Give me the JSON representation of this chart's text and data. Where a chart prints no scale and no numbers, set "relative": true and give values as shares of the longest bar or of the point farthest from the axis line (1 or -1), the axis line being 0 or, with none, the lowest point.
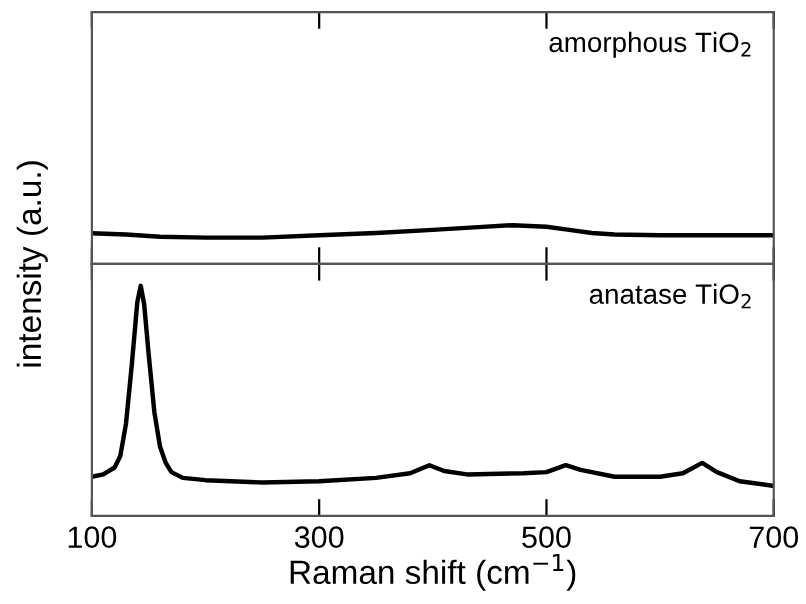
{
  "chart_data": [
    {
      "type": "line",
      "relative": true,
      "ylabel": "intensity (a.u.)",
      "annotations": [
        "amorphous TiO$_{2}$"
      ],
      "xlim": [
        100,
        700
      ],
      "xticks": [
        100,
        300,
        500,
        700
      ],
      "tick_labels": false,
      "grid": false,
      "marker": "none",
      "line_style": "solid",
      "series": [
        {
          "color": "#000000",
          "x": [
            100,
            130,
            160,
            200,
            250,
            300,
            350,
            400,
            440,
            470,
            500,
            520,
            540,
            560,
            600,
            650,
            700
          ],
          "values": [
            0.79,
            0.76,
            0.7,
            0.68,
            0.68,
            0.74,
            0.8,
            0.88,
            0.95,
            1.0,
            0.96,
            0.88,
            0.8,
            0.76,
            0.74,
            0.74,
            0.74
          ]
        }
      ]
    },
    {
      "type": "line",
      "relative": true,
      "xlabel": "Raman shift (cm$^{−1}$)",
      "annotations": [
        "anatase TiO$_{2}$"
      ],
      "xlim": [
        100,
        700
      ],
      "xticks": [
        100,
        300,
        500,
        700
      ],
      "tick_labels": "x",
      "grid": false,
      "marker": "none",
      "line_style": "solid",
      "series": [
        {
          "color": "#000000",
          "x": [
            100,
            110,
            120,
            125,
            130,
            135,
            140,
            143,
            146,
            150,
            155,
            160,
            165,
            170,
            180,
            200,
            250,
            300,
            350,
            380,
            397,
            410,
            430,
            480,
            500,
            517,
            530,
            560,
            600,
            620,
            637,
            650,
            670,
            700
          ],
          "values": [
            0.17,
            0.18,
            0.21,
            0.26,
            0.4,
            0.65,
            0.93,
            1.0,
            0.92,
            0.7,
            0.45,
            0.3,
            0.23,
            0.19,
            0.165,
            0.155,
            0.145,
            0.15,
            0.165,
            0.185,
            0.22,
            0.195,
            0.18,
            0.185,
            0.19,
            0.22,
            0.2,
            0.17,
            0.17,
            0.185,
            0.23,
            0.19,
            0.15,
            0.13
          ]
        }
      ]
    }
  ]
}
